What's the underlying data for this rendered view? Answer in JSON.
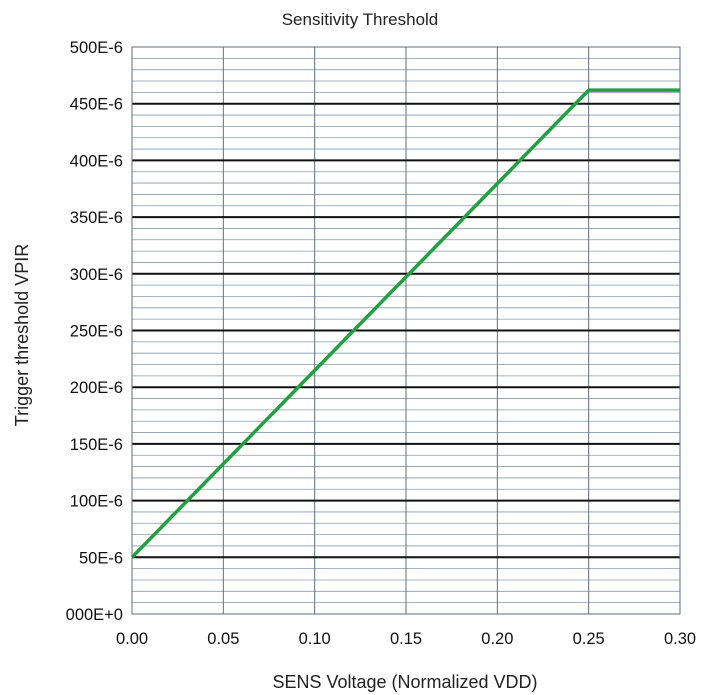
{
  "chart_data": {
    "type": "line",
    "title": "Sensitivity Threshold",
    "xlabel": "SENS Voltage (Normalized VDD)",
    "ylabel": "Trigger threshold VPIR",
    "xlim": [
      0,
      0.3
    ],
    "ylim": [
      0,
      0.0005
    ],
    "x_ticks": [
      0,
      0.05,
      0.1,
      0.15,
      0.2,
      0.25,
      0.3
    ],
    "x_tick_labels": [
      "0.00",
      "0.05",
      "0.10",
      "0.15",
      "0.20",
      "0.25",
      "0.30"
    ],
    "y_ticks": [
      0,
      5e-05,
      0.0001,
      0.00015,
      0.0002,
      0.00025,
      0.0003,
      0.00035,
      0.0004,
      0.00045,
      0.0005
    ],
    "y_tick_labels": [
      "000E+0",
      "50E-6",
      "100E-6",
      "150E-6",
      "200E-6",
      "250E-6",
      "300E-6",
      "350E-6",
      "400E-6",
      "450E-6",
      "500E-6"
    ],
    "grid": true,
    "legend": "none",
    "series": [
      {
        "color": "#20a040",
        "x": [
          0.0,
          0.25,
          0.3
        ],
        "y": [
          5e-05,
          0.000462,
          0.000462
        ]
      }
    ]
  }
}
